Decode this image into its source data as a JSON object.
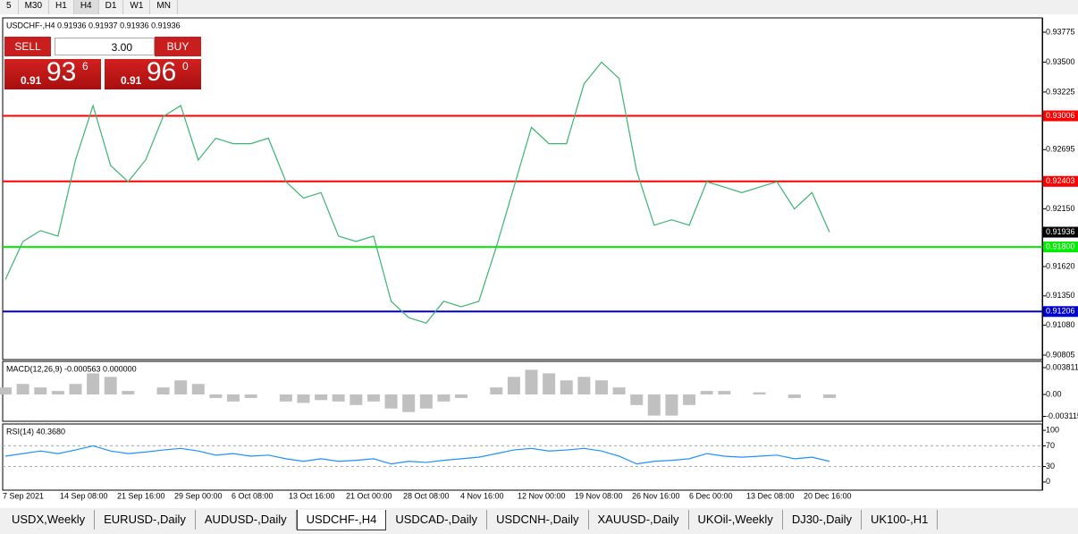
{
  "toolbar": {
    "timeframes": [
      "5",
      "M30",
      "H1",
      "H4",
      "D1",
      "W1",
      "MN"
    ]
  },
  "trade_panel": {
    "sell": "SELL",
    "buy": "BUY",
    "volume": "3.00",
    "bid": {
      "prefix": "0.91",
      "big": "93",
      "small": "6"
    },
    "ask": {
      "prefix": "0.91",
      "big": "96",
      "small": "0"
    }
  },
  "chart_data": [
    {
      "type": "line",
      "title": "USDCHF-,H4  0.91936 0.91937 0.91936 0.91936",
      "color": "#3cb371",
      "values": [
        0.915,
        0.9185,
        0.9195,
        0.919,
        0.926,
        0.931,
        0.9255,
        0.924,
        0.926,
        0.93,
        0.931,
        0.926,
        0.928,
        0.9275,
        0.9275,
        0.928,
        0.924,
        0.9225,
        0.923,
        0.919,
        0.9185,
        0.919,
        0.913,
        0.9115,
        0.911,
        0.913,
        0.9125,
        0.913,
        0.918,
        0.9235,
        0.929,
        0.9275,
        0.9275,
        0.933,
        0.935,
        0.9335,
        0.925,
        0.92,
        0.9205,
        0.92,
        0.924,
        0.9235,
        0.923,
        0.9235,
        0.924,
        0.9215,
        0.923,
        0.91936
      ],
      "ylim": [
        0.90764,
        0.93907
      ],
      "yticks": [
        {
          "value": 0.93775,
          "label": "0.93775"
        },
        {
          "value": 0.935,
          "label": "0.93500"
        },
        {
          "value": 0.93225,
          "label": "0.93225"
        },
        {
          "value": 0.92695,
          "label": "0.92695"
        },
        {
          "value": 0.9215,
          "label": "0.92150"
        },
        {
          "value": 0.9162,
          "label": "0.91620"
        },
        {
          "value": 0.9135,
          "label": "0.91350"
        },
        {
          "value": 0.9108,
          "label": "0.91080"
        },
        {
          "value": 0.90805,
          "label": "0.90805"
        }
      ],
      "levels": [
        {
          "value": 0.93006,
          "label": "0.93006",
          "color": "#ff0000"
        },
        {
          "value": 0.92403,
          "label": "0.92403",
          "color": "#ff0000"
        },
        {
          "value": 0.918,
          "label": "0.91800",
          "color": "#00ee00"
        },
        {
          "value": 0.91206,
          "label": "0.91206",
          "color": "#0000cc"
        }
      ],
      "current": {
        "value": 0.91936,
        "label": "0.91936"
      }
    },
    {
      "type": "bar",
      "title": "MACD(12,26,9) -0.000563 0.000000",
      "color": "#c0c0c0",
      "values": [
        0.001,
        0.0015,
        0.001,
        0.0005,
        0.0015,
        0.003,
        0.0025,
        0.0005,
        0.0,
        0.001,
        0.002,
        0.0015,
        -0.0005,
        -0.001,
        -0.0005,
        0.0,
        -0.001,
        -0.0012,
        -0.0008,
        -0.001,
        -0.0015,
        -0.001,
        -0.002,
        -0.0025,
        -0.002,
        -0.001,
        -0.0005,
        0.0,
        0.001,
        0.0025,
        0.0035,
        0.003,
        0.002,
        0.0025,
        0.002,
        0.001,
        -0.0015,
        -0.003,
        -0.003,
        -0.0015,
        0.0005,
        0.0005,
        0.0,
        0.0003,
        0.0,
        -0.0005,
        0.0,
        -0.0005
      ],
      "ylim": [
        -0.00381,
        0.0047
      ],
      "yticks": [
        0.003811,
        {
          "value": 0,
          "label": "0.00"
        },
        -0.003115
      ]
    },
    {
      "type": "line",
      "title": "RSI(14) 40.3680",
      "color": "#1e90ff",
      "values": [
        50,
        55,
        60,
        55,
        62,
        70,
        60,
        55,
        58,
        62,
        65,
        60,
        52,
        55,
        50,
        52,
        45,
        40,
        45,
        40,
        42,
        45,
        35,
        40,
        38,
        42,
        45,
        48,
        55,
        62,
        65,
        60,
        62,
        65,
        60,
        50,
        35,
        40,
        42,
        45,
        55,
        50,
        48,
        50,
        52,
        45,
        48,
        40
      ],
      "ylim": [
        -15.8,
        112.3
      ],
      "yticks": [
        100,
        70,
        30,
        0
      ],
      "dashed_levels": [
        70,
        30
      ]
    }
  ],
  "time_axis": [
    "7 Sep 2021",
    "14 Sep 08:00",
    "21 Sep 16:00",
    "29 Sep 00:00",
    "6 Oct 08:00",
    "13 Oct 16:00",
    "21 Oct 00:00",
    "28 Oct 08:00",
    "4 Nov 16:00",
    "12 Nov 00:00",
    "19 Nov 08:00",
    "26 Nov 16:00",
    "6 Dec 00:00",
    "13 Dec 08:00",
    "20 Dec 16:00"
  ],
  "tabs": [
    "USDX,Weekly",
    "EURUSD-,Daily",
    "AUDUSD-,Daily",
    "USDCHF-,H4",
    "USDCAD-,Daily",
    "USDCNH-,Daily",
    "XAUUSD-,Daily",
    "UKOil-,Weekly",
    "DJ30-,Daily",
    "UK100-,H1"
  ]
}
